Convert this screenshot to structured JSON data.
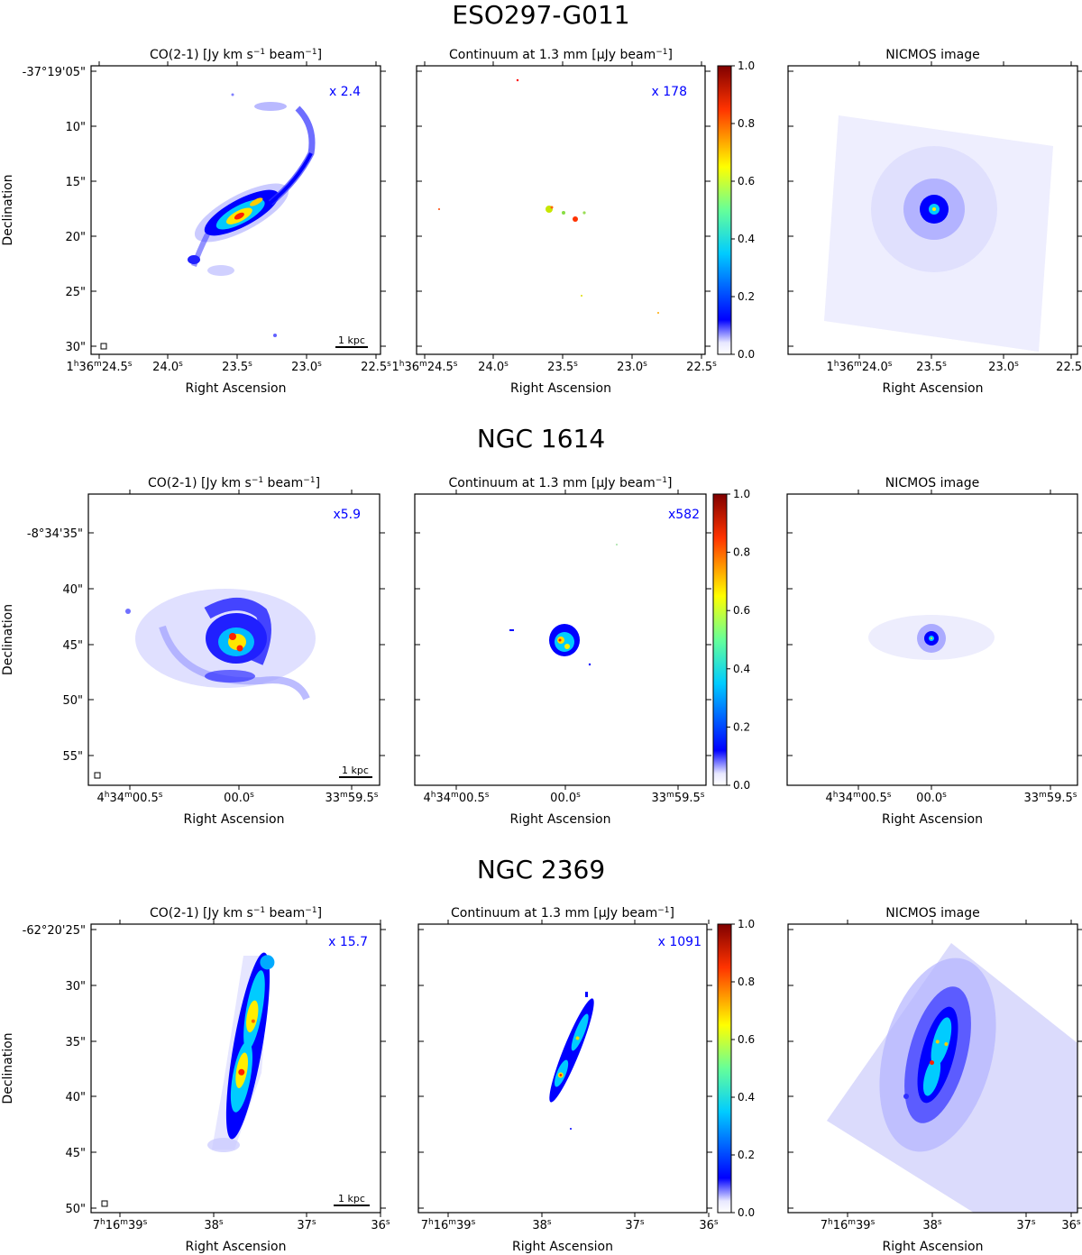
{
  "figure": {
    "panel_titles": {
      "co": [
        "CO(2-1) [Jy km s",
        "−1",
        " beam",
        "−1",
        "]"
      ],
      "cont": [
        "Continuum at 1.3 mm [",
        "μ",
        "Jy beam",
        "−1",
        "]"
      ],
      "nicmos": "NICMOS image"
    },
    "xlabel": "Right Ascension",
    "ylabel": "Declination",
    "scalebar_label": "1 kpc",
    "colorbar": {
      "ticks": [
        "0.0",
        "0.2",
        "0.4",
        "0.6",
        "0.8",
        "1.0"
      ],
      "colormap": "jet"
    },
    "annotation_color": "#0000ff"
  },
  "rows": [
    {
      "name": "ESO297-G011",
      "co_scale": "x 2.4",
      "cont_scale": "x 178",
      "dec_ticks": [
        "-37°19'05\"",
        "10\"",
        "15\"",
        "20\"",
        "25\"",
        "30\""
      ],
      "ra_ticks": [
        {
          "h": "1",
          "hs": "h",
          "m": "36",
          "ms": "m",
          "s": "24.5",
          "ss": "s"
        },
        {
          "s": "24.0",
          "ss": "s"
        },
        {
          "s": "23.5",
          "ss": "s"
        },
        {
          "s": "23.0",
          "ss": "s"
        },
        {
          "s": "22.5",
          "ss": "s"
        }
      ],
      "nicmos_ra_ticks": [
        {
          "h": "1",
          "hs": "h",
          "m": "36",
          "ms": "m",
          "s": "24.0",
          "ss": "s"
        },
        {
          "s": "23.5",
          "ss": "s"
        },
        {
          "s": "23.0",
          "ss": "s"
        },
        {
          "s": "22.5",
          "ss": "s"
        }
      ]
    },
    {
      "name": "NGC 1614",
      "co_scale": "x5.9",
      "cont_scale": "x582",
      "dec_ticks": [
        "-8°34'35\"",
        "40\"",
        "45\"",
        "50\"",
        "55\""
      ],
      "ra_ticks": [
        {
          "h": "4",
          "hs": "h",
          "m": "34",
          "ms": "m",
          "s": "00.5",
          "ss": "s"
        },
        {
          "s": "00.0",
          "ss": "s"
        },
        {
          "m": "33",
          "ms": "m",
          "s": "59.5",
          "ss": "s"
        }
      ],
      "nicmos_ra_ticks": [
        {
          "h": "4",
          "hs": "h",
          "m": "34",
          "ms": "m",
          "s": "00.5",
          "ss": "s"
        },
        {
          "s": "00.0",
          "ss": "s"
        },
        {
          "m": "33",
          "ms": "m",
          "s": "59.5",
          "ss": "s"
        }
      ]
    },
    {
      "name": "NGC 2369",
      "co_scale": "x 15.7",
      "cont_scale": "x 1091",
      "dec_ticks": [
        "-62°20'25\"",
        "30\"",
        "35\"",
        "40\"",
        "45\"",
        "50\""
      ],
      "ra_ticks": [
        {
          "h": "7",
          "hs": "h",
          "m": "16",
          "ms": "m",
          "s": "39",
          "ss": "s"
        },
        {
          "s": "38",
          "ss": "s"
        },
        {
          "s": "37",
          "ss": "s"
        },
        {
          "s": "36",
          "ss": "s"
        }
      ],
      "nicmos_ra_ticks": [
        {
          "h": "7",
          "hs": "h",
          "m": "16",
          "ms": "m",
          "s": "39",
          "ss": "s"
        },
        {
          "s": "38",
          "ss": "s"
        },
        {
          "s": "37",
          "ss": "s"
        },
        {
          "s": "36",
          "ss": "s"
        }
      ]
    }
  ]
}
